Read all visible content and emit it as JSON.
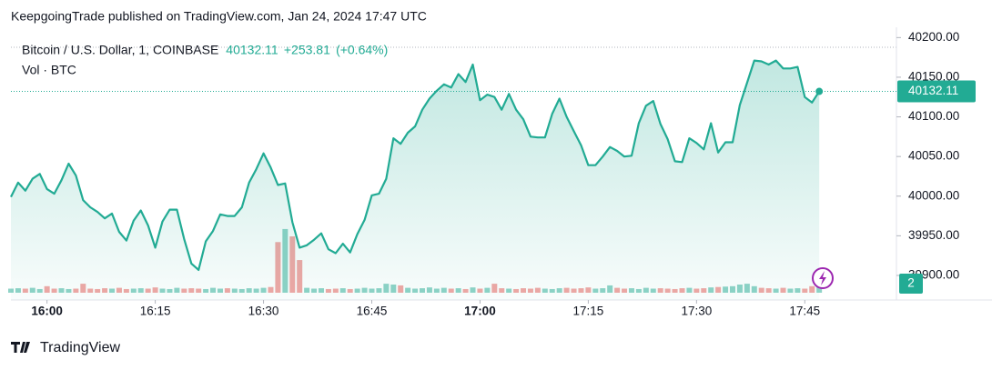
{
  "chart_data": {
    "type": "line",
    "attribution": "KeepgoingTrade published on TradingView.com, Jan 24, 2024 17:47 UTC",
    "change": "+253.81",
    "change_percent": "(+0.64%)",
    "brand": "TradingView",
    "x": [
      "15:55",
      "15:56",
      "15:57",
      "15:58",
      "15:59",
      "16:00",
      "16:01",
      "16:02",
      "16:03",
      "16:04",
      "16:05",
      "16:06",
      "16:07",
      "16:08",
      "16:09",
      "16:10",
      "16:11",
      "16:12",
      "16:13",
      "16:14",
      "16:15",
      "16:16",
      "16:17",
      "16:18",
      "16:19",
      "16:20",
      "16:21",
      "16:22",
      "16:23",
      "16:24",
      "16:25",
      "16:26",
      "16:27",
      "16:28",
      "16:29",
      "16:30",
      "16:31",
      "16:32",
      "16:33",
      "16:34",
      "16:35",
      "16:36",
      "16:37",
      "16:38",
      "16:39",
      "16:40",
      "16:41",
      "16:42",
      "16:43",
      "16:44",
      "16:45",
      "16:46",
      "16:47",
      "16:48",
      "16:49",
      "16:50",
      "16:51",
      "16:52",
      "16:53",
      "16:54",
      "16:55",
      "16:56",
      "16:57",
      "16:58",
      "16:59",
      "17:00",
      "17:01",
      "17:02",
      "17:03",
      "17:04",
      "17:05",
      "17:06",
      "17:07",
      "17:08",
      "17:09",
      "17:10",
      "17:11",
      "17:12",
      "17:13",
      "17:14",
      "17:15",
      "17:16",
      "17:17",
      "17:18",
      "17:19",
      "17:20",
      "17:21",
      "17:22",
      "17:23",
      "17:24",
      "17:25",
      "17:26",
      "17:27",
      "17:28",
      "17:29",
      "17:30",
      "17:31",
      "17:32",
      "17:33",
      "17:34",
      "17:35",
      "17:36",
      "17:37",
      "17:38",
      "17:39",
      "17:40",
      "17:41",
      "17:42",
      "17:43",
      "17:44",
      "17:45",
      "17:46",
      "17:47"
    ],
    "xticks": [
      "16:00",
      "16:15",
      "16:30",
      "16:45",
      "17:00",
      "17:15",
      "17:30",
      "17:45"
    ],
    "series": [
      {
        "name": "Bitcoin / U.S. Dollar, 1, COINBASE",
        "color": "#22ab94",
        "values": [
          39999,
          40017,
          40007,
          40022,
          40028,
          40009,
          40003,
          40020,
          40041,
          40026,
          39995,
          39986,
          39980,
          39972,
          39978,
          39955,
          39944,
          39969,
          39982,
          39963,
          39935,
          39968,
          39983,
          39983,
          39946,
          39915,
          39907,
          39943,
          39956,
          39977,
          39975,
          39975,
          39986,
          40017,
          40034,
          40054,
          40036,
          40014,
          40016,
          39967,
          39935,
          39938,
          39945,
          39953,
          39933,
          39928,
          39940,
          39929,
          39952,
          39970,
          40001,
          40003,
          40022,
          40073,
          40066,
          40080,
          40088,
          40109,
          40123,
          40133,
          40141,
          40137,
          40154,
          40144,
          40166,
          40121,
          40128,
          40125,
          40109,
          40129,
          40109,
          40097,
          40075,
          40074,
          40074,
          40104,
          40123,
          40100,
          40082,
          40064,
          40039,
          40039,
          40050,
          40062,
          40057,
          40050,
          40051,
          40092,
          40114,
          40120,
          40091,
          40072,
          40044,
          40043,
          40073,
          40067,
          40059,
          40092,
          40055,
          40068,
          40068,
          40115,
          40143,
          40171,
          40170,
          40166,
          40171,
          40161,
          40161,
          40163,
          40125,
          40118,
          40132.11
        ]
      },
      {
        "name": "Vol · BTC",
        "axis": "y2",
        "up_color": "#8fd3c7",
        "down_color": "#f2a7a5",
        "values": [
          1,
          1.1,
          1,
          1.2,
          0.9,
          1.6,
          1,
          1.1,
          0.9,
          1,
          2.2,
          1,
          0.9,
          1.1,
          1,
          1.2,
          0.9,
          1,
          1.1,
          1,
          1.3,
          1,
          0.9,
          1.2,
          1,
          1.1,
          1,
          0.9,
          1.2,
          1,
          1.1,
          1,
          0.9,
          1.1,
          1,
          1.2,
          1.4,
          12.4,
          15.6,
          13.8,
          8,
          1.2,
          1,
          1.1,
          0.9,
          1,
          1.1,
          0.9,
          1,
          1.2,
          1,
          1.1,
          2.2,
          2,
          1.8,
          1.2,
          1,
          1.1,
          1.3,
          1,
          1.2,
          1,
          1.1,
          0.9,
          1.3,
          1,
          1.2,
          2.2,
          1.1,
          1,
          0.9,
          1.1,
          1,
          1.2,
          1,
          0.9,
          1.1,
          1.2,
          1,
          1.1,
          1.3,
          1,
          1.1,
          1.8,
          1.2,
          1,
          1.1,
          0.9,
          1.2,
          1,
          1.1,
          1,
          0.9,
          1.1,
          1.2,
          1,
          1.1,
          1.3,
          1.4,
          1.5,
          1.6,
          2,
          2.2,
          1.6,
          1.2,
          1.1,
          1,
          1.2,
          1,
          1.1,
          1,
          1.6,
          2
        ]
      }
    ],
    "ylim": [
      39869,
      40213
    ],
    "yticks": [
      {
        "value": 39900,
        "label": "39900.00"
      },
      {
        "value": 39950,
        "label": "39950.00"
      },
      {
        "value": 40000,
        "label": "40000.00"
      },
      {
        "value": 40050,
        "label": "40050.00"
      },
      {
        "value": 40100,
        "label": "40100.00"
      },
      {
        "value": 40150,
        "label": "40150.00"
      },
      {
        "value": 40200,
        "label": "40200.00"
      }
    ],
    "y2lim": [
      0,
      65
    ]
  }
}
